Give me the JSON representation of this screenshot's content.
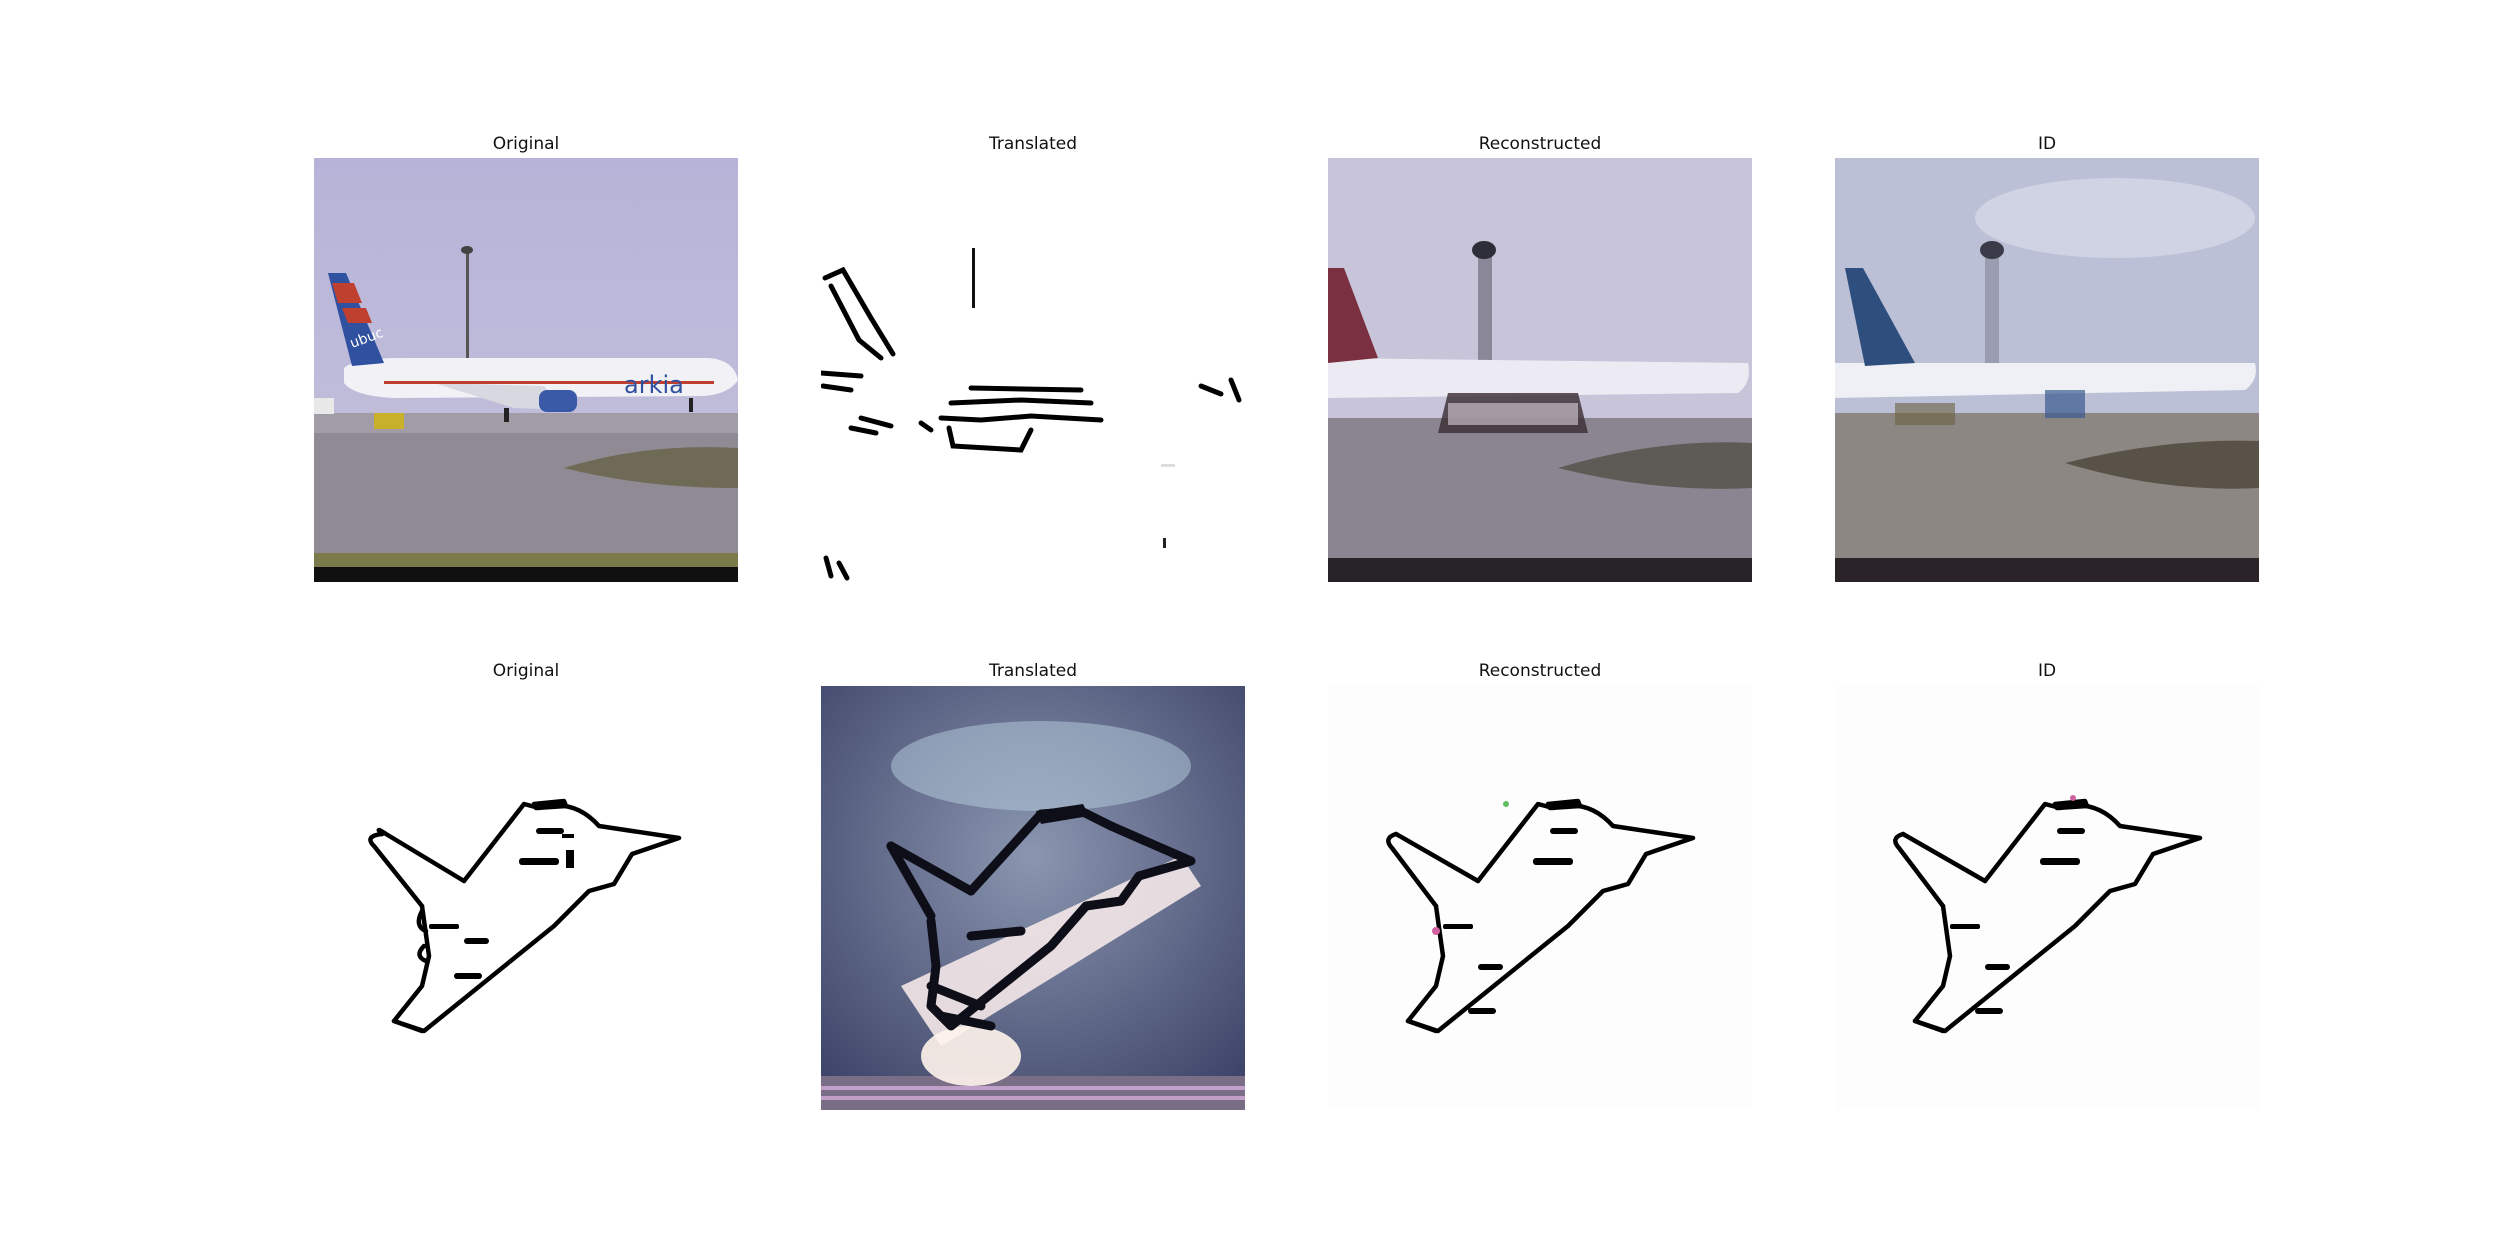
{
  "rows": [
    {
      "panels": [
        {
          "title": "Original",
          "depicts": "photo of airliner with striped tail on airport apron, light pole behind",
          "brand_text": "arkia",
          "tail_text": "ubuc"
        },
        {
          "title": "Translated",
          "depicts": "sparse black edge strokes of aircraft on white"
        },
        {
          "title": "Reconstructed",
          "depicts": "blurry reconstruction of airliner photo"
        },
        {
          "title": "ID",
          "depicts": "blurry identity mapping of airliner photo"
        }
      ]
    },
    {
      "panels": [
        {
          "title": "Original",
          "depicts": "black line sketch of fighter jet on white"
        },
        {
          "title": "Translated",
          "depicts": "blurry photo-like rendering of fighter jet on blue-grey background"
        },
        {
          "title": "Reconstructed",
          "depicts": "reconstructed line sketch of fighter jet"
        },
        {
          "title": "ID",
          "depicts": "identity line sketch of fighter jet"
        }
      ]
    }
  ],
  "colors": {
    "sky": "#b8b6d8",
    "tarmac": "#8a8590",
    "tail_blue": "#3050a0",
    "tail_red": "#c04030",
    "sketch_line": "#000000"
  }
}
